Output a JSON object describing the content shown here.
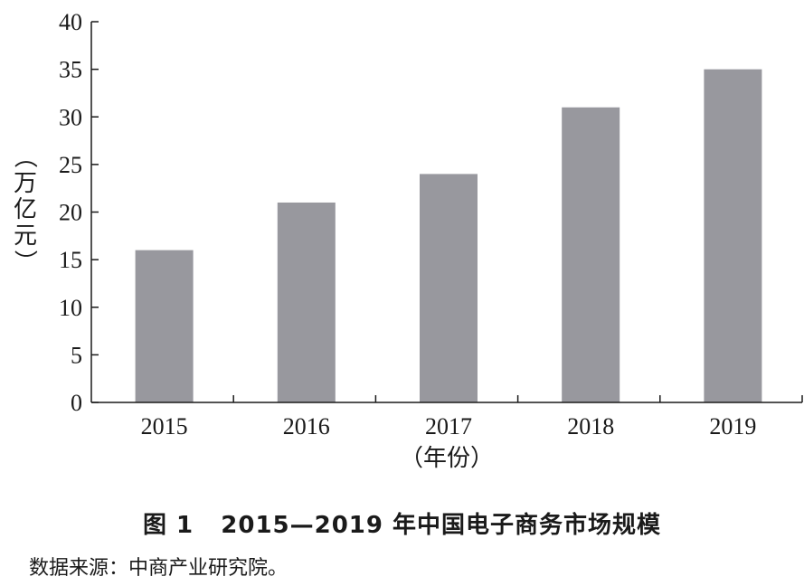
{
  "figure": {
    "caption_prefix": "图 1",
    "caption_title": "2015—2019 年中国电子商务市场规模",
    "source": "数据来源：中商产业研究院。"
  },
  "chart_data": {
    "type": "bar",
    "categories": [
      "2015",
      "2016",
      "2017",
      "2018",
      "2019"
    ],
    "values": [
      16,
      21,
      24,
      31,
      35
    ],
    "xlabel": "（年份）",
    "ylabel": "（万亿元）",
    "ylabel_chars": [
      "（",
      "万",
      "亿",
      "元",
      "）"
    ],
    "ylim": [
      0,
      40
    ],
    "yticks": [
      0,
      5,
      10,
      15,
      20,
      25,
      30,
      35,
      40
    ],
    "grid": false,
    "bar_color": "#98989e",
    "axis_color": "#1a1a1a"
  }
}
